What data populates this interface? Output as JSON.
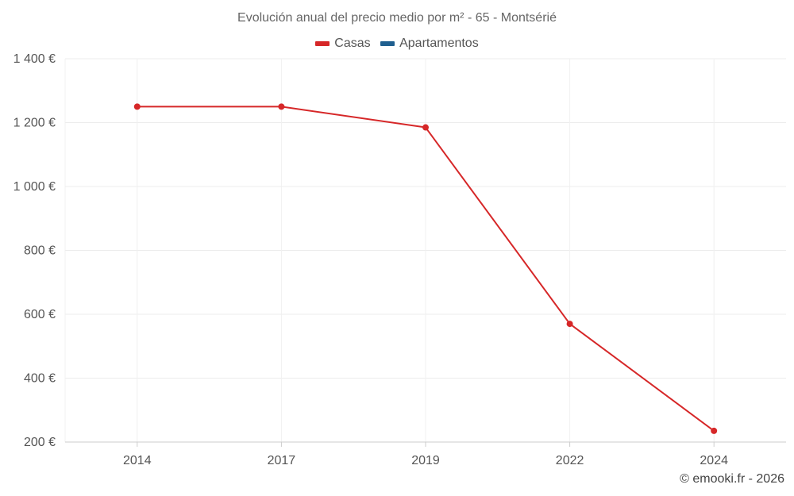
{
  "chart_data": {
    "type": "line",
    "title": "Evolución anual del precio medio por m² - 65 - Montsérié",
    "categories": [
      "2014",
      "2017",
      "2019",
      "2022",
      "2024"
    ],
    "series": [
      {
        "name": "Casas",
        "color": "#d62728",
        "values": [
          1250,
          1250,
          1185,
          570,
          235
        ]
      },
      {
        "name": "Apartamentos",
        "color": "#1f5f8f",
        "values": [
          null,
          null,
          null,
          null,
          null
        ]
      }
    ],
    "yticks": [
      200,
      400,
      600,
      800,
      1000,
      1200,
      1400
    ],
    "ytick_labels": [
      "200 €",
      "400 €",
      "600 €",
      "800 €",
      "1 000 €",
      "1 200 €",
      "1 400 €"
    ],
    "ylim": [
      200,
      1400
    ],
    "xlabel": "",
    "ylabel": "",
    "grid": true,
    "legend_position": "top-center"
  },
  "footer": {
    "copyright": "© emooki.fr - 2026"
  }
}
